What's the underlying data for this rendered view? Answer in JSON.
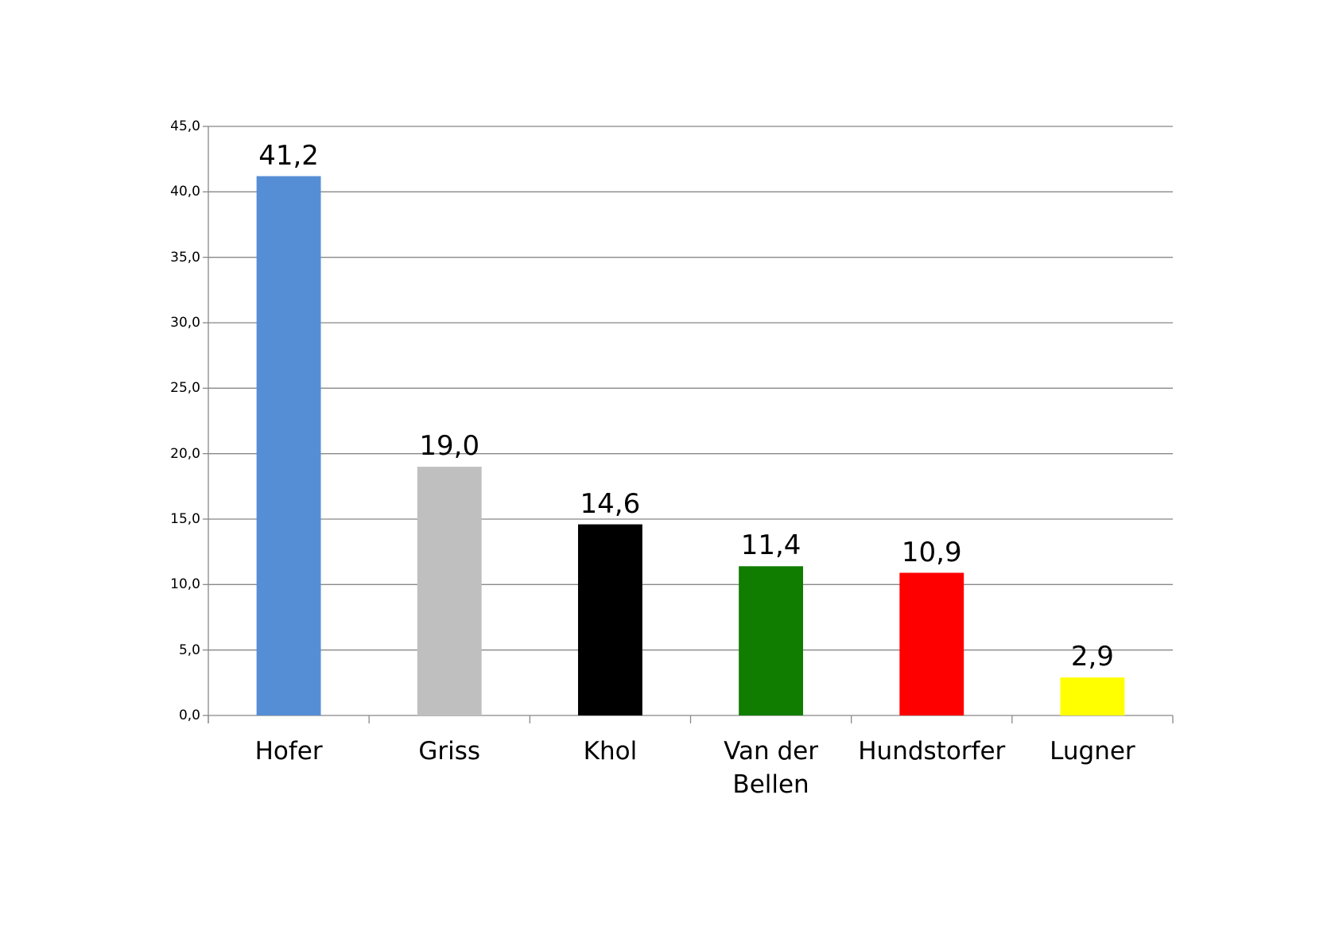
{
  "chart_data": {
    "type": "bar",
    "categories": [
      "Hofer",
      "Griss",
      "Khol",
      "Van der Bellen",
      "Hundstorfer",
      "Lugner"
    ],
    "values": [
      41.2,
      19.0,
      14.6,
      11.4,
      10.9,
      2.9
    ],
    "value_labels": [
      "41,2",
      "19,0",
      "14,6",
      "11,4",
      "10,9",
      "2,9"
    ],
    "colors": [
      "#558ed5",
      "#bfbfbf",
      "#000000",
      "#117d00",
      "#ff0000",
      "#ffff00"
    ],
    "ylim": [
      0,
      45
    ],
    "yticks": [
      {
        "value": 0,
        "label": "0,0"
      },
      {
        "value": 5,
        "label": "5,0"
      },
      {
        "value": 10,
        "label": "10,0"
      },
      {
        "value": 15,
        "label": "15,0"
      },
      {
        "value": 20,
        "label": "20,0"
      },
      {
        "value": 25,
        "label": "25,0"
      },
      {
        "value": 30,
        "label": "30,0"
      },
      {
        "value": 35,
        "label": "35,0"
      },
      {
        "value": 40,
        "label": "40,0"
      },
      {
        "value": 45,
        "label": "45,0"
      }
    ],
    "grid": true
  }
}
